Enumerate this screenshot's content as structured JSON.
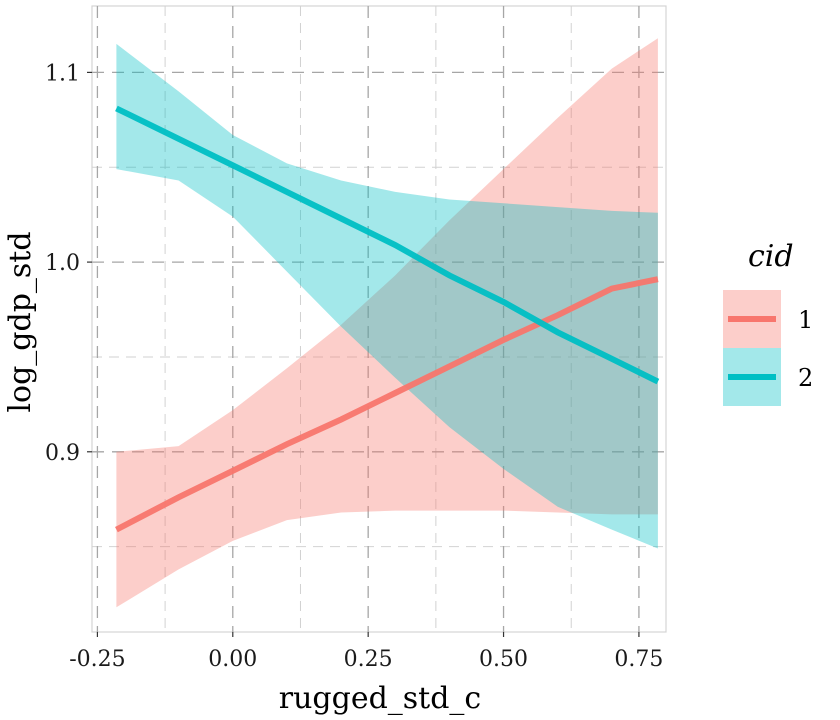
{
  "chart_data": {
    "type": "line",
    "xlabel": "rugged_std_c",
    "ylabel": "log_gdp_std",
    "xlim": [
      -0.26,
      0.8
    ],
    "ylim": [
      0.805,
      1.135
    ],
    "x_ticks": [
      "-0.25",
      "0.00",
      "0.25",
      "0.50",
      "0.75"
    ],
    "x_tick_values": [
      -0.25,
      0.0,
      0.25,
      0.5,
      0.75
    ],
    "y_ticks": [
      "0.9",
      "1.0",
      "1.1"
    ],
    "y_tick_values": [
      0.9,
      1.0,
      1.1
    ],
    "grid": "dashed",
    "legend": {
      "title": "cid",
      "position": "right",
      "entries": [
        "1",
        "2"
      ]
    },
    "series": [
      {
        "name": "1",
        "color": "#F8766D",
        "band_color": "#F8766D",
        "x": [
          -0.215,
          -0.1,
          0.0,
          0.1,
          0.2,
          0.3,
          0.4,
          0.5,
          0.6,
          0.7,
          0.785
        ],
        "y": [
          0.859,
          0.876,
          0.89,
          0.904,
          0.917,
          0.931,
          0.945,
          0.959,
          0.972,
          0.986,
          0.991
        ],
        "lower": [
          0.818,
          0.838,
          0.853,
          0.864,
          0.868,
          0.869,
          0.869,
          0.869,
          0.868,
          0.867,
          0.867
        ],
        "upper": [
          0.9,
          0.903,
          0.922,
          0.944,
          0.967,
          0.993,
          1.022,
          1.049,
          1.076,
          1.102,
          1.118
        ]
      },
      {
        "name": "2",
        "color": "#00BFC4",
        "band_color": "#00BFC4",
        "x": [
          -0.215,
          -0.1,
          0.0,
          0.1,
          0.2,
          0.3,
          0.4,
          0.5,
          0.6,
          0.7,
          0.785
        ],
        "y": [
          1.081,
          1.065,
          1.051,
          1.037,
          1.023,
          1.009,
          0.993,
          0.979,
          0.963,
          0.949,
          0.937
        ],
        "lower": [
          1.049,
          1.043,
          1.024,
          0.995,
          0.966,
          0.939,
          0.913,
          0.891,
          0.871,
          0.859,
          0.849
        ],
        "upper": [
          1.115,
          1.09,
          1.067,
          1.052,
          1.043,
          1.037,
          1.033,
          1.031,
          1.029,
          1.027,
          1.026
        ]
      }
    ]
  }
}
